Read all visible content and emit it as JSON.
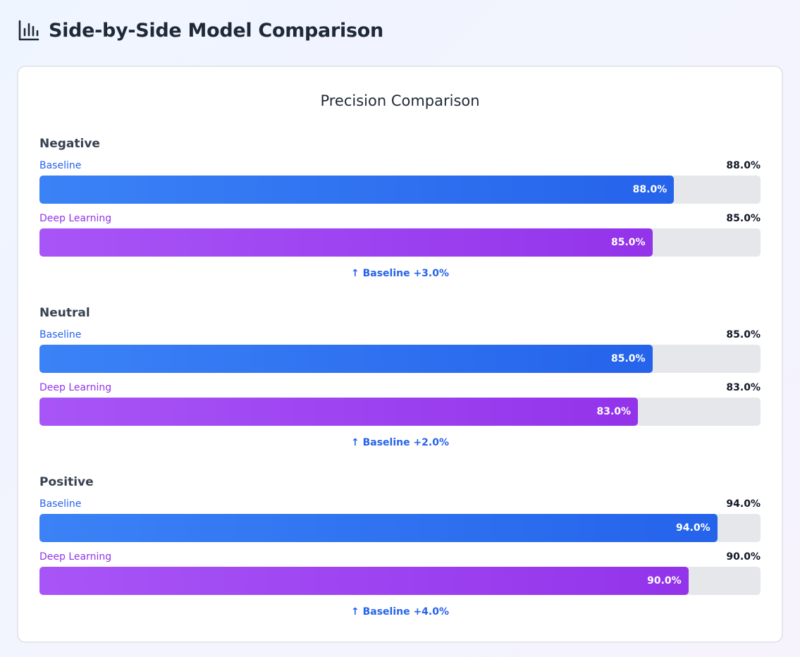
{
  "page": {
    "title": "Side-by-Side Model Comparison",
    "icon": "bar-chart-icon"
  },
  "colors": {
    "baseline": "#2563eb",
    "deep_learning": "#9333ea",
    "track": "#e5e7eb"
  },
  "chart_data": {
    "type": "bar",
    "title": "Precision Comparison",
    "categories": [
      "Negative",
      "Neutral",
      "Positive"
    ],
    "series": [
      {
        "name": "Baseline",
        "values": [
          88.0,
          85.0,
          94.0
        ],
        "labels": [
          "88.0%",
          "85.0%",
          "94.0%"
        ]
      },
      {
        "name": "Deep Learning",
        "values": [
          85.0,
          83.0,
          90.0
        ],
        "labels": [
          "85.0%",
          "83.0%",
          "90.0%"
        ]
      }
    ],
    "ylim": [
      0,
      100
    ],
    "comparisons": [
      "↑ Baseline +3.0%",
      "↑ Baseline +2.0%",
      "↑ Baseline +4.0%"
    ]
  }
}
